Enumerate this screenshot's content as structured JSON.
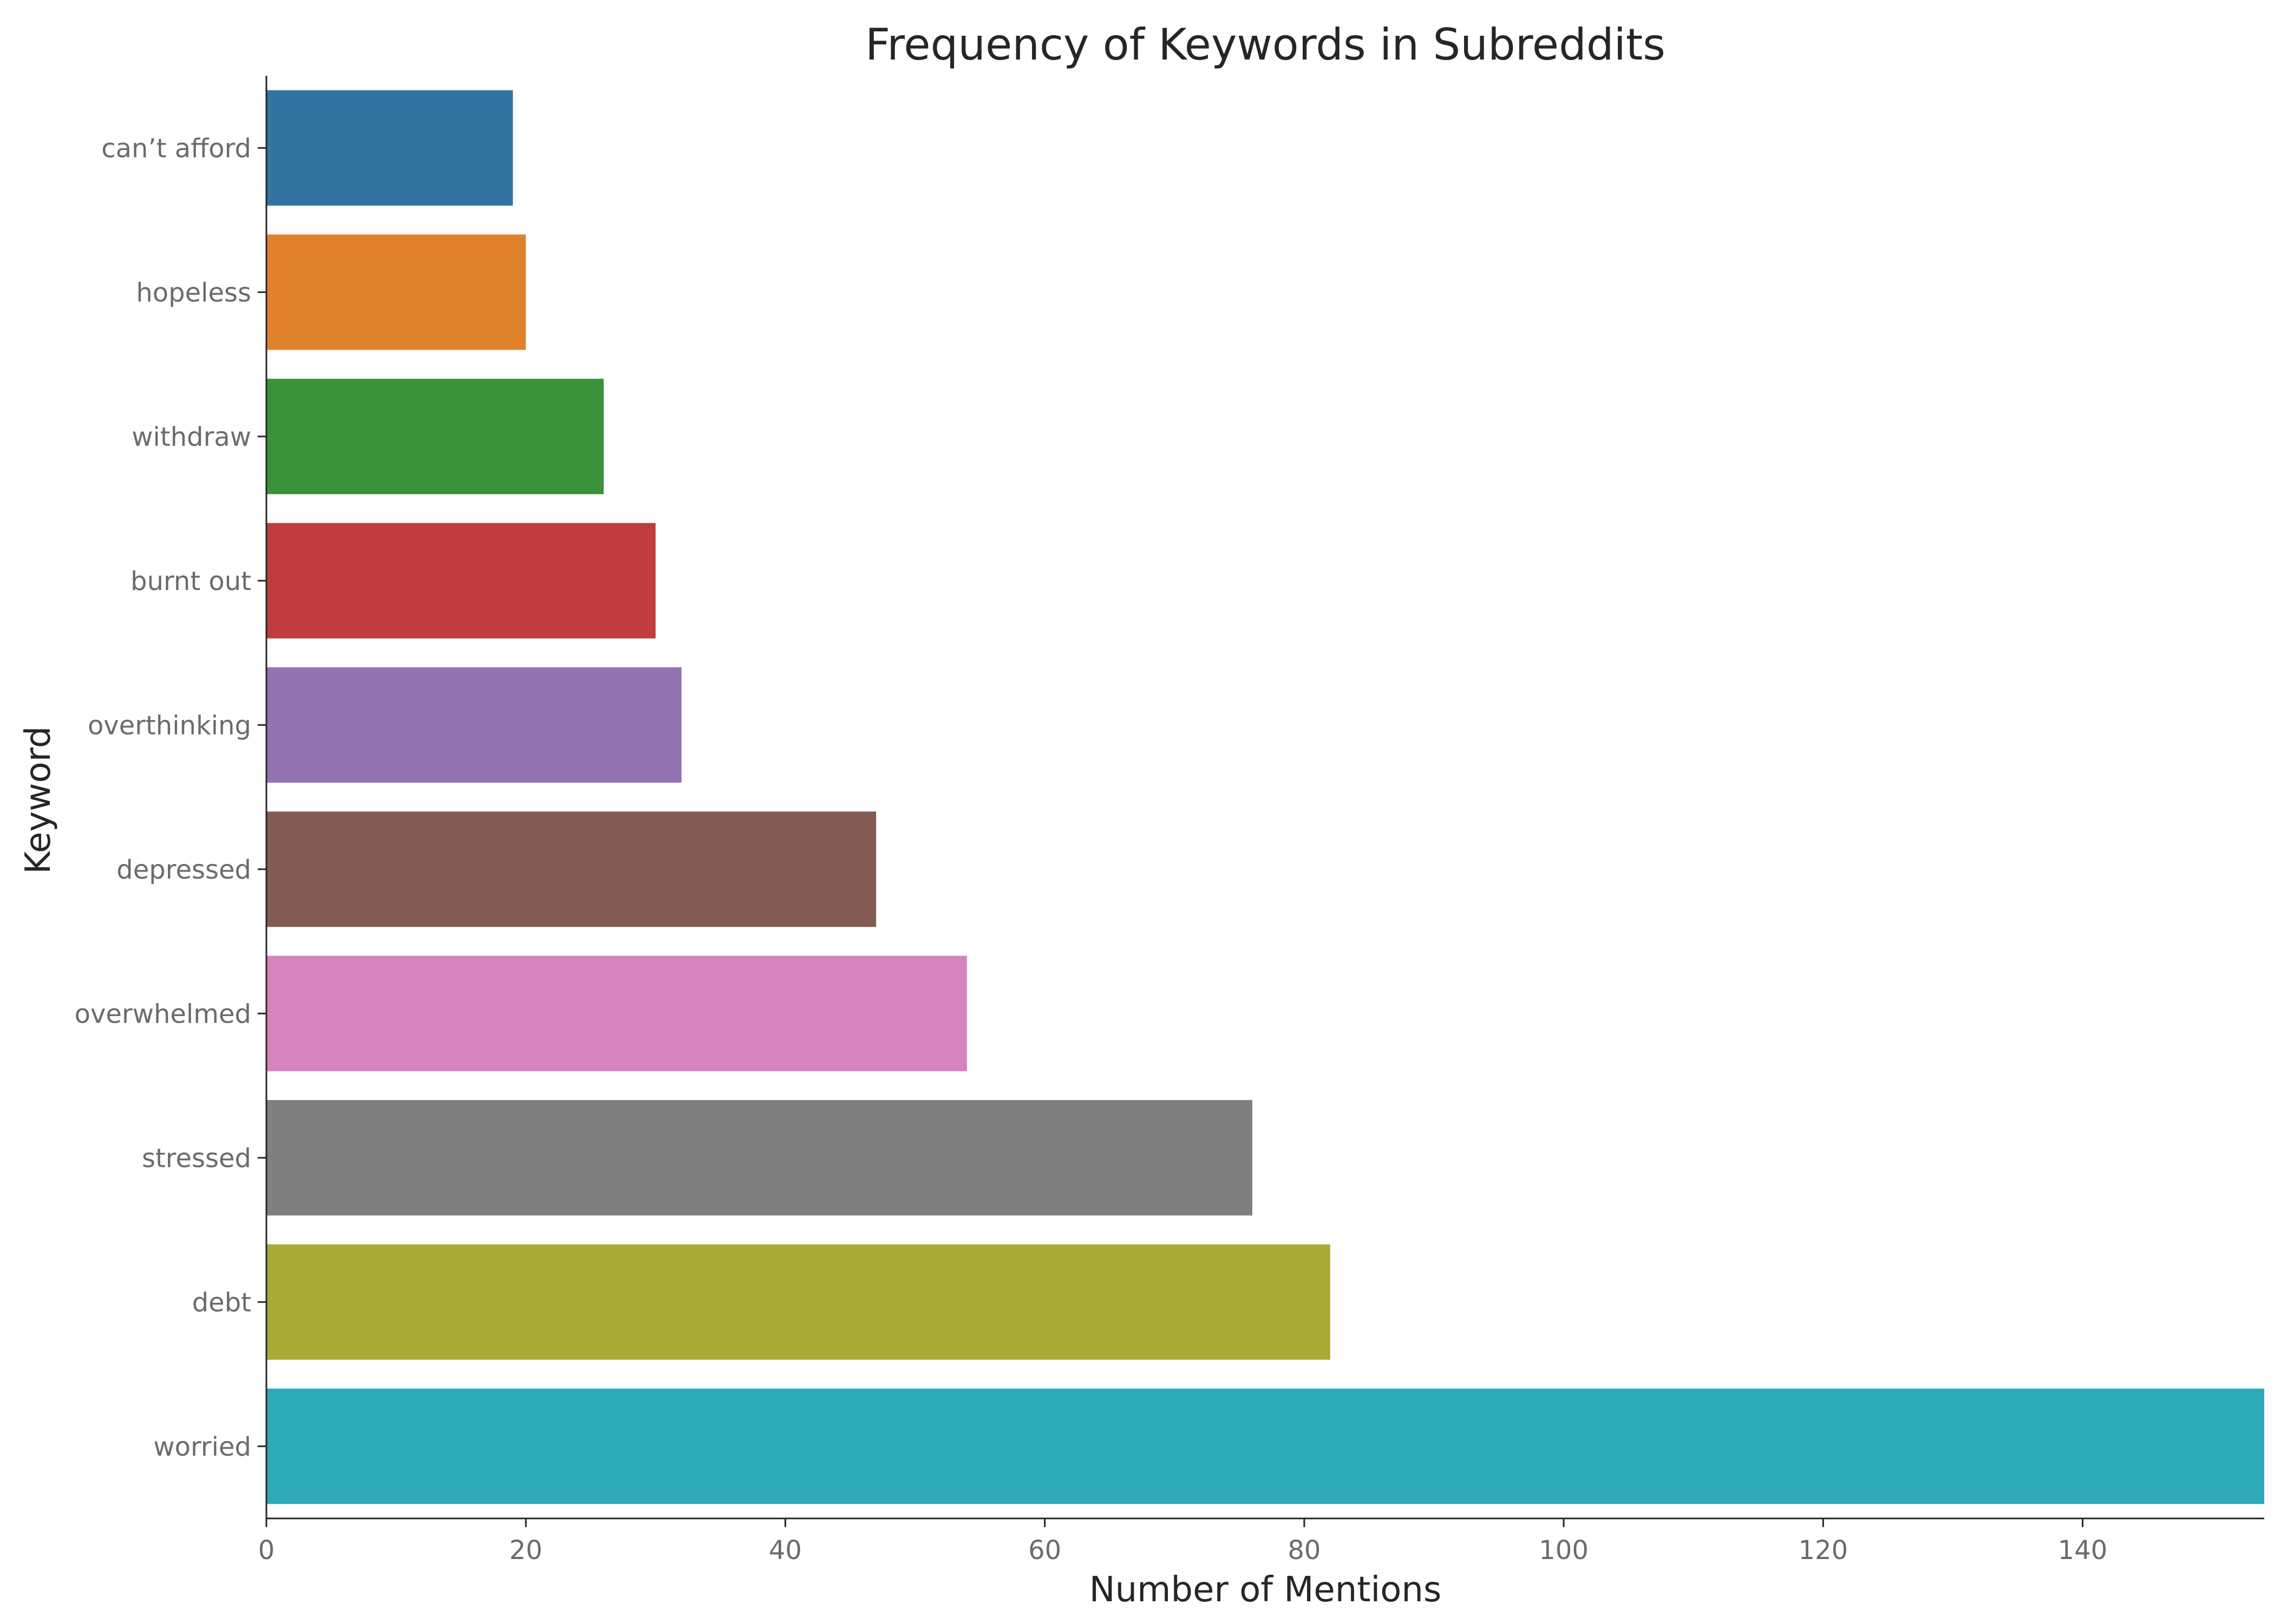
{
  "chart_data": {
    "type": "bar",
    "orientation": "horizontal",
    "title": "Frequency of Keywords in Subreddits",
    "xlabel": "Number of Mentions",
    "ylabel": "Keyword",
    "categories": [
      "can’t afford",
      "hopeless",
      "withdraw",
      "burnt out",
      "overthinking",
      "depressed",
      "overwhelmed",
      "stressed",
      "debt",
      "worried"
    ],
    "values": [
      19,
      20,
      26,
      30,
      32,
      47,
      54,
      76,
      82,
      154
    ],
    "colors": [
      "#3274a1",
      "#e1812c",
      "#3a923a",
      "#c03d3e",
      "#9372b2",
      "#845b53",
      "#d684bd",
      "#7f7f7f",
      "#a9aa35",
      "#2ea9b8"
    ],
    "xlim": [
      0,
      154
    ],
    "xticks": [
      0,
      20,
      40,
      60,
      80,
      100,
      120,
      140
    ],
    "grid": false,
    "legend": "none"
  }
}
